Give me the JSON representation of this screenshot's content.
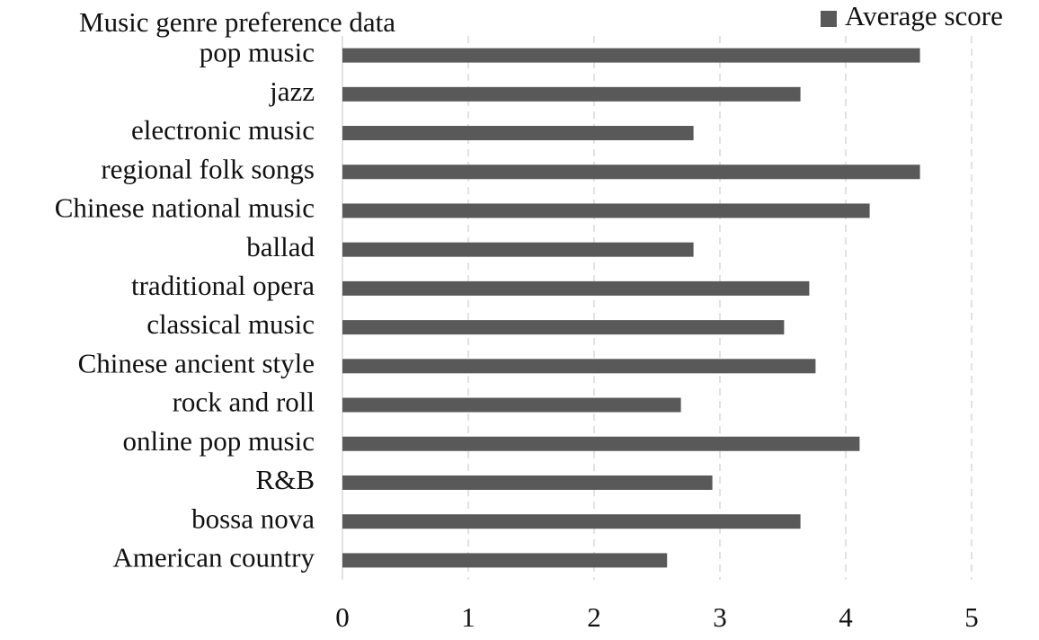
{
  "chart_data": {
    "type": "bar",
    "orientation": "horizontal",
    "title": "Music genre preference data",
    "categories": [
      "pop music",
      "jazz",
      "electronic music",
      "regional folk songs",
      "Chinese national music",
      "ballad",
      "traditional opera",
      "classical music",
      "Chinese ancient style",
      "rock and roll",
      "online pop music",
      "R&B",
      "bossa nova",
      "American country"
    ],
    "series": [
      {
        "name": "Average score",
        "color": "#595959",
        "values": [
          4.59,
          3.64,
          2.79,
          4.59,
          4.19,
          2.79,
          3.71,
          3.51,
          3.76,
          2.69,
          4.11,
          2.94,
          3.64,
          2.58
        ]
      }
    ],
    "xlim": [
      0,
      5
    ],
    "xticks": [
      0,
      1,
      2,
      3,
      4,
      5
    ],
    "grid": true,
    "legend": "top-right"
  }
}
